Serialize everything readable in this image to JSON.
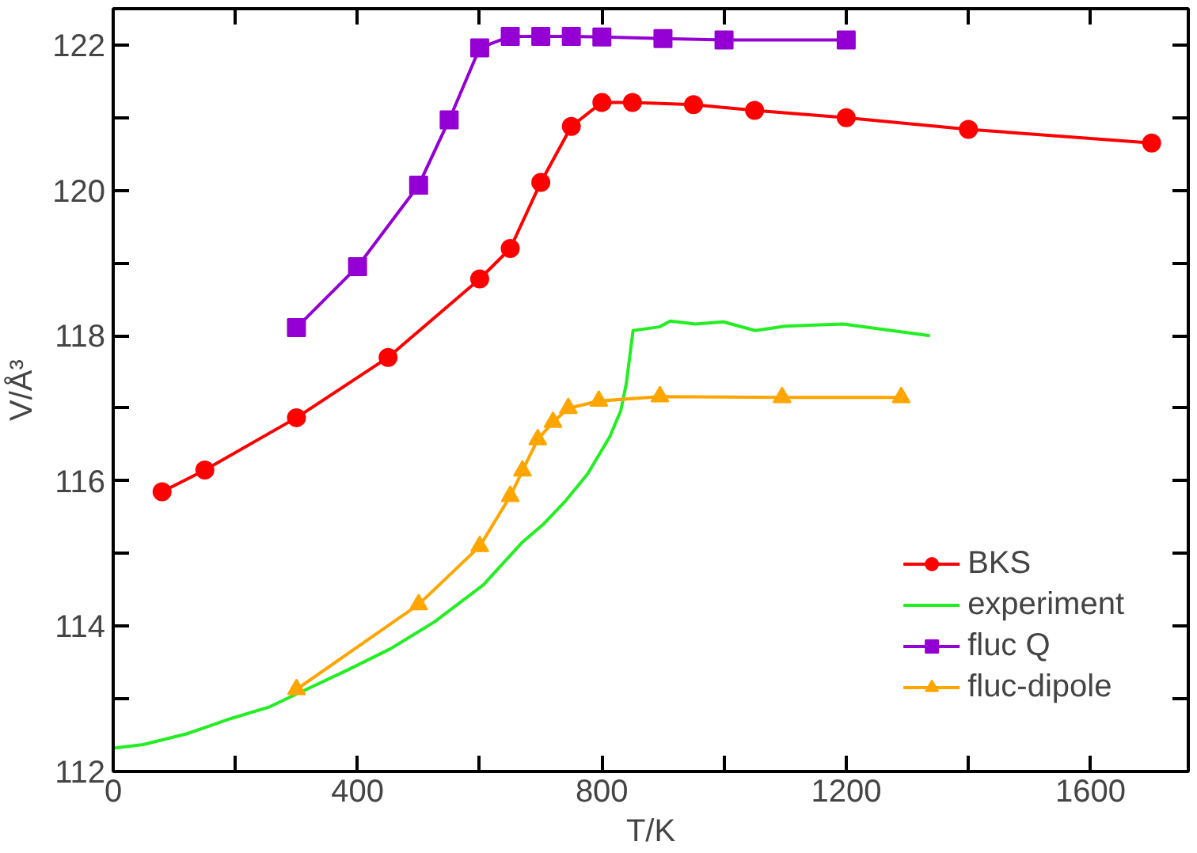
{
  "chart_data": {
    "type": "line",
    "xlabel": "T/K",
    "ylabel": "V/Å³",
    "xlim": [
      0,
      1760
    ],
    "ylim": [
      112,
      122.5
    ],
    "xticks": [
      0,
      {
        "value": 200,
        "label": null
      },
      400,
      {
        "value": 600,
        "label": null
      },
      800,
      {
        "value": 1000,
        "label": null
      },
      1200,
      {
        "value": 1400,
        "label": null
      },
      1600
    ],
    "yticks": [
      112,
      {
        "value": 113,
        "label": null
      },
      114,
      {
        "value": 115,
        "label": null
      },
      116,
      {
        "value": 117,
        "label": null
      },
      118,
      {
        "value": 119,
        "label": null
      },
      120,
      {
        "value": 121,
        "label": null
      },
      122
    ],
    "grid": false,
    "legend": "bottom right",
    "line_style": "solid",
    "series": [
      {
        "name": "BKS",
        "color": "#ff0000",
        "marker": "circle",
        "x": [
          80,
          150,
          300,
          450,
          600,
          650,
          700,
          750,
          800,
          850,
          950,
          1050,
          1200,
          1400,
          1700
        ],
        "values": [
          115.85,
          116.15,
          116.87,
          117.7,
          118.78,
          119.2,
          120.11,
          120.88,
          121.21,
          121.21,
          121.18,
          121.1,
          121.0,
          120.84,
          120.65
        ]
      },
      {
        "name": "experiment",
        "color": "#22ee22",
        "marker": "none",
        "x": [
          0,
          49,
          121,
          193,
          256,
          301,
          382,
          454,
          526,
          606,
          669,
          705,
          741,
          777,
          813,
          831,
          840,
          851,
          894,
          912,
          953,
          999,
          1051,
          1100,
          1195,
          1337
        ],
        "values": [
          112.32,
          112.37,
          112.52,
          112.73,
          112.89,
          113.07,
          113.39,
          113.69,
          114.06,
          114.57,
          115.15,
          115.41,
          115.73,
          116.1,
          116.61,
          116.97,
          117.34,
          118.07,
          118.12,
          118.2,
          118.16,
          118.19,
          118.07,
          118.13,
          118.16,
          118.0
        ]
      },
      {
        "name": "fluc Q",
        "color": "#9400d3",
        "marker": "square",
        "x": [
          300,
          400,
          500,
          550,
          600,
          650,
          700,
          750,
          800,
          900,
          1000,
          1200
        ],
        "values": [
          118.11,
          118.95,
          120.07,
          120.97,
          121.96,
          122.12,
          122.12,
          122.12,
          122.11,
          122.09,
          122.07,
          122.07
        ]
      },
      {
        "name": "fluc-dipole",
        "color": "#ffa500",
        "marker": "triangle",
        "x": [
          300,
          500,
          600,
          650,
          670,
          695,
          720,
          745,
          795,
          895,
          1095,
          1290
        ],
        "values": [
          113.13,
          114.3,
          115.1,
          115.79,
          116.14,
          116.57,
          116.81,
          117.0,
          117.1,
          117.16,
          117.15,
          117.15
        ]
      }
    ]
  }
}
